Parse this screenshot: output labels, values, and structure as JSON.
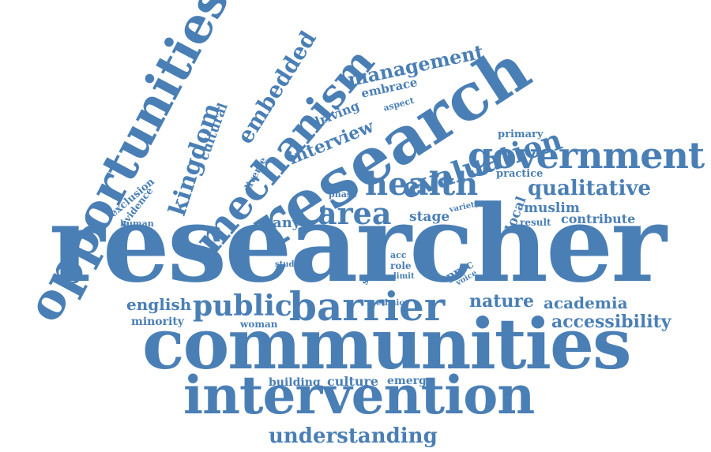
{
  "color": "#4a7fb5",
  "words": [
    {
      "id": "researcher",
      "text": "researcher"
    },
    {
      "id": "communities",
      "text": "communities"
    },
    {
      "id": "intervention",
      "text": "intervention"
    },
    {
      "id": "research",
      "text": "research"
    },
    {
      "id": "opportunities",
      "text": "opportunities"
    },
    {
      "id": "mechanism",
      "text": "mechanism"
    },
    {
      "id": "barrier",
      "text": "barrier"
    },
    {
      "id": "government",
      "text": "government"
    },
    {
      "id": "evaluation",
      "text": "evaluation"
    },
    {
      "id": "health",
      "text": "health"
    },
    {
      "id": "area",
      "text": "area"
    },
    {
      "id": "public",
      "text": "public"
    },
    {
      "id": "kingdom",
      "text": "kingdom"
    },
    {
      "id": "embedded",
      "text": "embedded"
    },
    {
      "id": "management",
      "text": "management"
    },
    {
      "id": "understanding",
      "text": "understanding"
    },
    {
      "id": "qualitative",
      "text": "qualitative"
    },
    {
      "id": "accessibility",
      "text": "accessibility"
    },
    {
      "id": "nature",
      "text": "nature"
    },
    {
      "id": "academia",
      "text": "academia"
    },
    {
      "id": "english",
      "text": "english"
    },
    {
      "id": "interview",
      "text": "interview"
    },
    {
      "id": "cultural",
      "text": "cultural"
    },
    {
      "id": "driving",
      "text": "driving"
    },
    {
      "id": "embrace",
      "text": "embrace"
    },
    {
      "id": "aspect",
      "text": "aspect"
    },
    {
      "id": "many",
      "text": "many"
    },
    {
      "id": "stage",
      "text": "stage"
    },
    {
      "id": "muslim",
      "text": "muslim"
    },
    {
      "id": "contribute",
      "text": "contribute"
    },
    {
      "id": "result",
      "text": "result"
    },
    {
      "id": "local",
      "text": "local"
    },
    {
      "id": "primary",
      "text": "primary"
    },
    {
      "id": "practice",
      "text": "practice"
    },
    {
      "id": "exclusion",
      "text": "exclusion"
    },
    {
      "id": "evidence",
      "text": "evidence"
    },
    {
      "id": "diverse",
      "text": "diverse"
    },
    {
      "id": "phase",
      "text": "phase"
    },
    {
      "id": "variety",
      "text": "variety"
    },
    {
      "id": "human",
      "text": "human"
    },
    {
      "id": "study",
      "text": "study"
    },
    {
      "id": "several",
      "text": "several"
    },
    {
      "id": "acc",
      "text": "acc"
    },
    {
      "id": "role",
      "text": "role"
    },
    {
      "id": "limit",
      "text": "limit"
    },
    {
      "id": "proc",
      "text": "proc"
    },
    {
      "id": "voice",
      "text": "voice"
    },
    {
      "id": "ethnic",
      "text": "ethnic"
    },
    {
      "id": "minority",
      "text": "minority"
    },
    {
      "id": "woman",
      "text": "woman"
    },
    {
      "id": "building",
      "text": "building"
    },
    {
      "id": "culture",
      "text": "culture"
    },
    {
      "id": "emerge",
      "text": "emerge"
    }
  ]
}
